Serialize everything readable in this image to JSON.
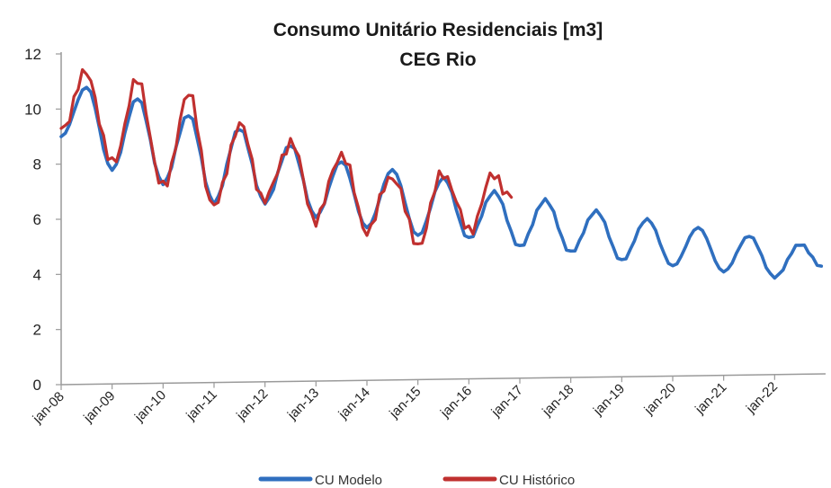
{
  "chart_data": {
    "type": "line",
    "title": "Consumo Unitário Residenciais [m3]",
    "subtitle": "CEG Rio",
    "xlabel": "",
    "ylabel": "",
    "ylim": [
      0,
      12
    ],
    "yticks": [
      "0",
      "2",
      "4",
      "6",
      "8",
      "10",
      "12"
    ],
    "xticks": [
      "jan-08",
      "jan-09",
      "jan-10",
      "jan-11",
      "jan-12",
      "jan-13",
      "jan-14",
      "jan-15",
      "jan-16",
      "jan-17",
      "jan-18",
      "jan-19",
      "jan-20",
      "jan-21",
      "jan-22"
    ],
    "grid": false,
    "legend_position": "bottom",
    "series": [
      {
        "name": "CU Modelo",
        "color": "#2f6fbf",
        "x": [
          "2008-01",
          "2008-07",
          "2009-01",
          "2009-07",
          "2010-01",
          "2010-07",
          "2011-01",
          "2011-07",
          "2012-01",
          "2012-07",
          "2013-01",
          "2013-07",
          "2014-01",
          "2014-07",
          "2015-01",
          "2015-07",
          "2016-01",
          "2016-07",
          "2017-01",
          "2017-07",
          "2018-01",
          "2018-07",
          "2019-01",
          "2019-07",
          "2020-01",
          "2020-07",
          "2021-01",
          "2021-07",
          "2022-01",
          "2022-07",
          "2022-12"
        ],
        "values": [
          9.0,
          10.8,
          7.8,
          10.4,
          7.3,
          9.8,
          6.6,
          9.3,
          6.6,
          8.7,
          6.1,
          8.1,
          5.7,
          7.8,
          5.4,
          7.5,
          5.3,
          7.0,
          5.0,
          6.7,
          4.8,
          6.3,
          4.5,
          6.0,
          4.3,
          5.7,
          4.1,
          5.4,
          3.9,
          5.1,
          4.3
        ]
      },
      {
        "name": "CU Histórico",
        "color": "#c0302f",
        "x": [
          "2008-01",
          "2008-07",
          "2009-01",
          "2009-07",
          "2010-01",
          "2010-07",
          "2011-01",
          "2011-07",
          "2012-01",
          "2012-07",
          "2013-01",
          "2013-07",
          "2014-01",
          "2014-07",
          "2015-01",
          "2015-07",
          "2016-01",
          "2016-07",
          "2016-11"
        ],
        "values": [
          9.3,
          11.3,
          8.0,
          11.0,
          7.1,
          10.5,
          6.4,
          9.4,
          6.7,
          8.8,
          6.0,
          8.4,
          5.6,
          7.6,
          5.1,
          7.7,
          5.6,
          7.6,
          6.8
        ]
      }
    ]
  }
}
